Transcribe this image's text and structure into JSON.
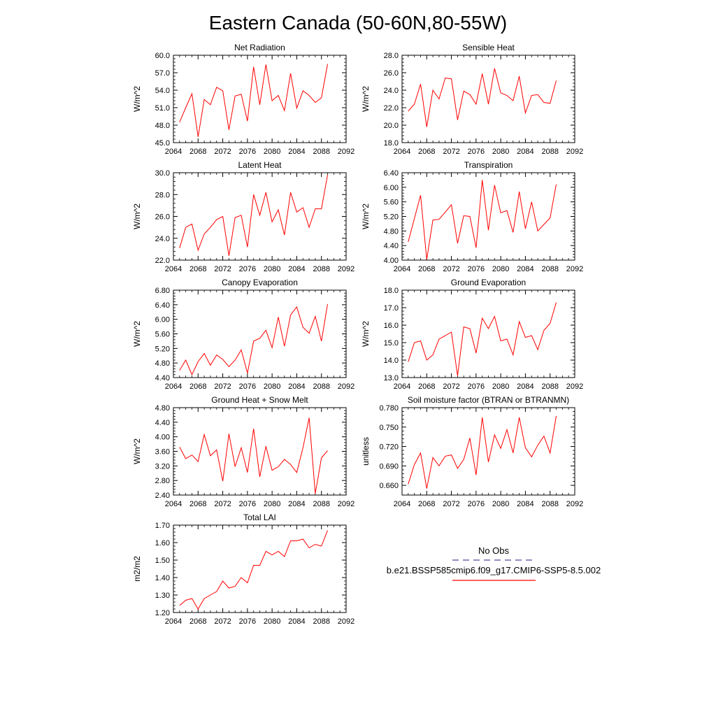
{
  "title": "Eastern Canada (50-60N,80-55W)",
  "legend": {
    "items": [
      {
        "label": "No Obs",
        "color": "#4a4aa0",
        "style": "dashed"
      },
      {
        "label": "b.e21.BSSP585cmip6.f09_g17.CMIP6-SSP5-8.5.002",
        "color": "#ff0000",
        "style": "solid"
      }
    ]
  },
  "chart_data": [
    {
      "type": "line",
      "title": "Net Radiation",
      "ylabel": "W/m^2",
      "xlim": [
        2064,
        2092
      ],
      "ylim": [
        45.0,
        60.0
      ],
      "xticks": [
        "2064",
        "2068",
        "2072",
        "2076",
        "2080",
        "2084",
        "2088",
        "2092"
      ],
      "yticks": [
        "45.0",
        "48.0",
        "51.0",
        "54.0",
        "57.0",
        "60.0"
      ],
      "series": [
        {
          "color": "#ff0000",
          "x": [
            2065,
            2066,
            2067,
            2068,
            2069,
            2070,
            2071,
            2072,
            2073,
            2074,
            2075,
            2076,
            2077,
            2078,
            2079,
            2080,
            2081,
            2082,
            2083,
            2084,
            2085,
            2086,
            2087,
            2088,
            2089
          ],
          "y": [
            48.5,
            51.0,
            53.4,
            46.0,
            52.4,
            51.5,
            54.5,
            53.9,
            47.2,
            53.0,
            53.3,
            48.7,
            58.0,
            51.5,
            58.4,
            52.2,
            53.1,
            50.5,
            56.9,
            50.9,
            53.9,
            53.1,
            51.9,
            52.7,
            58.5
          ]
        }
      ]
    },
    {
      "type": "line",
      "title": "Sensible Heat",
      "ylabel": "W/m^2",
      "xlim": [
        2064,
        2092
      ],
      "ylim": [
        18.0,
        28.0
      ],
      "xticks": [
        "2064",
        "2068",
        "2072",
        "2076",
        "2080",
        "2084",
        "2088",
        "2092"
      ],
      "yticks": [
        "18.0",
        "20.0",
        "22.0",
        "24.0",
        "26.0",
        "28.0"
      ],
      "series": [
        {
          "color": "#ff0000",
          "x": [
            2065,
            2066,
            2067,
            2068,
            2069,
            2070,
            2071,
            2072,
            2073,
            2074,
            2075,
            2076,
            2077,
            2078,
            2079,
            2080,
            2081,
            2082,
            2083,
            2084,
            2085,
            2086,
            2087,
            2088,
            2089
          ],
          "y": [
            21.6,
            22.4,
            24.7,
            19.8,
            24.0,
            23.0,
            25.4,
            25.3,
            20.6,
            23.9,
            23.5,
            22.4,
            25.9,
            22.4,
            26.5,
            23.7,
            23.4,
            22.8,
            25.6,
            21.4,
            23.4,
            23.5,
            22.6,
            22.5,
            25.1
          ]
        }
      ]
    },
    {
      "type": "line",
      "title": "Latent Heat",
      "ylabel": "W/m^2",
      "xlim": [
        2064,
        2092
      ],
      "ylim": [
        22.0,
        30.0
      ],
      "xticks": [
        "2064",
        "2068",
        "2072",
        "2076",
        "2080",
        "2084",
        "2088",
        "2092"
      ],
      "yticks": [
        "22.0",
        "24.0",
        "26.0",
        "28.0",
        "30.0"
      ],
      "series": [
        {
          "color": "#ff0000",
          "x": [
            2065,
            2066,
            2067,
            2068,
            2069,
            2070,
            2071,
            2072,
            2073,
            2074,
            2075,
            2076,
            2077,
            2078,
            2079,
            2080,
            2081,
            2082,
            2083,
            2084,
            2085,
            2086,
            2087,
            2088,
            2089
          ],
          "y": [
            23.1,
            25.0,
            25.3,
            22.9,
            24.4,
            25.0,
            25.7,
            26.0,
            22.4,
            25.9,
            26.1,
            23.2,
            28.0,
            26.1,
            28.2,
            25.5,
            26.6,
            24.3,
            28.2,
            26.4,
            26.8,
            25.0,
            26.7,
            26.7,
            29.8
          ]
        }
      ]
    },
    {
      "type": "line",
      "title": "Transpiration",
      "ylabel": "W/m^2",
      "xlim": [
        2064,
        2092
      ],
      "ylim": [
        4.0,
        6.4
      ],
      "xticks": [
        "2064",
        "2068",
        "2072",
        "2076",
        "2080",
        "2084",
        "2088",
        "2092"
      ],
      "yticks": [
        "4.00",
        "4.40",
        "4.80",
        "5.20",
        "5.60",
        "6.00",
        "6.40"
      ],
      "series": [
        {
          "color": "#ff0000",
          "x": [
            2065,
            2066,
            2067,
            2068,
            2069,
            2070,
            2071,
            2072,
            2073,
            2074,
            2075,
            2076,
            2077,
            2078,
            2079,
            2080,
            2081,
            2082,
            2083,
            2084,
            2085,
            2086,
            2087,
            2088,
            2089
          ],
          "y": [
            4.5,
            5.14,
            5.78,
            4.02,
            5.1,
            5.12,
            5.32,
            5.52,
            4.46,
            5.22,
            5.2,
            4.34,
            6.2,
            4.82,
            6.06,
            5.3,
            5.36,
            4.76,
            5.88,
            4.86,
            5.6,
            4.8,
            4.98,
            5.16,
            6.08
          ]
        }
      ]
    },
    {
      "type": "line",
      "title": "Canopy Evaporation",
      "ylabel": "W/m^2",
      "xlim": [
        2064,
        2092
      ],
      "ylim": [
        4.4,
        6.8
      ],
      "xticks": [
        "2064",
        "2068",
        "2072",
        "2076",
        "2080",
        "2084",
        "2088",
        "2092"
      ],
      "yticks": [
        "4.40",
        "4.80",
        "5.20",
        "5.60",
        "6.00",
        "6.40",
        "6.80"
      ],
      "series": [
        {
          "color": "#ff0000",
          "x": [
            2065,
            2066,
            2067,
            2068,
            2069,
            2070,
            2071,
            2072,
            2073,
            2074,
            2075,
            2076,
            2077,
            2078,
            2079,
            2080,
            2081,
            2082,
            2083,
            2084,
            2085,
            2086,
            2087,
            2088,
            2089
          ],
          "y": [
            4.6,
            4.88,
            4.48,
            4.84,
            5.06,
            4.74,
            5.02,
            4.9,
            4.7,
            4.88,
            5.16,
            4.52,
            5.4,
            5.48,
            5.7,
            5.22,
            6.06,
            5.26,
            6.12,
            6.34,
            5.78,
            5.62,
            6.08,
            5.4,
            6.42
          ]
        }
      ]
    },
    {
      "type": "line",
      "title": "Ground Evaporation",
      "ylabel": "W/m^2",
      "xlim": [
        2064,
        2092
      ],
      "ylim": [
        13.0,
        18.0
      ],
      "xticks": [
        "2064",
        "2068",
        "2072",
        "2076",
        "2080",
        "2084",
        "2088",
        "2092"
      ],
      "yticks": [
        "13.0",
        "14.0",
        "15.0",
        "16.0",
        "17.0",
        "18.0"
      ],
      "series": [
        {
          "color": "#ff0000",
          "x": [
            2065,
            2066,
            2067,
            2068,
            2069,
            2070,
            2071,
            2072,
            2073,
            2074,
            2075,
            2076,
            2077,
            2078,
            2079,
            2080,
            2081,
            2082,
            2083,
            2084,
            2085,
            2086,
            2087,
            2088,
            2089
          ],
          "y": [
            13.9,
            15.0,
            15.1,
            14.0,
            14.3,
            15.2,
            15.4,
            15.6,
            13.1,
            15.9,
            15.8,
            14.4,
            16.4,
            15.8,
            16.5,
            15.1,
            15.2,
            14.3,
            16.2,
            15.3,
            15.4,
            14.6,
            15.7,
            16.1,
            17.3
          ]
        }
      ]
    },
    {
      "type": "line",
      "title": "Ground Heat + Snow Melt",
      "ylabel": "W/m^2",
      "xlim": [
        2064,
        2092
      ],
      "ylim": [
        2.4,
        4.8
      ],
      "xticks": [
        "2064",
        "2068",
        "2072",
        "2076",
        "2080",
        "2084",
        "2088",
        "2092"
      ],
      "yticks": [
        "2.40",
        "2.80",
        "3.20",
        "3.60",
        "4.00",
        "4.40",
        "4.80"
      ],
      "series": [
        {
          "color": "#ff0000",
          "x": [
            2065,
            2066,
            2067,
            2068,
            2069,
            2070,
            2071,
            2072,
            2073,
            2074,
            2075,
            2076,
            2077,
            2078,
            2079,
            2080,
            2081,
            2082,
            2083,
            2084,
            2085,
            2086,
            2087,
            2088,
            2089
          ],
          "y": [
            3.72,
            3.4,
            3.5,
            3.32,
            4.06,
            3.48,
            3.64,
            2.78,
            4.08,
            3.18,
            3.7,
            3.02,
            4.22,
            2.9,
            3.74,
            3.08,
            3.18,
            3.38,
            3.24,
            3.02,
            3.7,
            4.52,
            2.44,
            3.42,
            3.62
          ]
        }
      ]
    },
    {
      "type": "line",
      "title": "Soil moisture factor (BTRAN or BTRANMN)",
      "ylabel": "unitless",
      "xlim": [
        2064,
        2092
      ],
      "ylim": [
        0.645,
        0.78
      ],
      "xticks": [
        "2064",
        "2068",
        "2072",
        "2076",
        "2080",
        "2084",
        "2088",
        "2092"
      ],
      "yticks": [
        "0.660",
        "0.690",
        "0.720",
        "0.750",
        "0.780"
      ],
      "yticks_values": [
        0.66,
        0.69,
        0.72,
        0.75,
        0.78
      ],
      "series": [
        {
          "color": "#ff0000",
          "x": [
            2065,
            2066,
            2067,
            2068,
            2069,
            2070,
            2071,
            2072,
            2073,
            2074,
            2075,
            2076,
            2077,
            2078,
            2079,
            2080,
            2081,
            2082,
            2083,
            2084,
            2085,
            2086,
            2087,
            2088,
            2089
          ],
          "y": [
            0.662,
            0.692,
            0.71,
            0.655,
            0.703,
            0.69,
            0.705,
            0.707,
            0.686,
            0.7,
            0.733,
            0.676,
            0.765,
            0.696,
            0.738,
            0.717,
            0.746,
            0.71,
            0.765,
            0.718,
            0.704,
            0.722,
            0.736,
            0.71,
            0.767
          ]
        }
      ]
    },
    {
      "type": "line",
      "title": "Total LAI",
      "ylabel": "m2/m2",
      "xlim": [
        2064,
        2092
      ],
      "ylim": [
        1.2,
        1.7
      ],
      "xticks": [
        "2064",
        "2068",
        "2072",
        "2076",
        "2080",
        "2084",
        "2088",
        "2092"
      ],
      "yticks": [
        "1.20",
        "1.30",
        "1.40",
        "1.50",
        "1.60",
        "1.70"
      ],
      "series": [
        {
          "color": "#ff0000",
          "x": [
            2065,
            2066,
            2067,
            2068,
            2069,
            2070,
            2071,
            2072,
            2073,
            2074,
            2075,
            2076,
            2077,
            2078,
            2079,
            2080,
            2081,
            2082,
            2083,
            2084,
            2085,
            2086,
            2087,
            2088,
            2089
          ],
          "y": [
            1.24,
            1.27,
            1.28,
            1.22,
            1.28,
            1.3,
            1.32,
            1.38,
            1.34,
            1.35,
            1.4,
            1.37,
            1.47,
            1.47,
            1.55,
            1.53,
            1.55,
            1.52,
            1.61,
            1.61,
            1.62,
            1.57,
            1.59,
            1.58,
            1.67
          ]
        }
      ]
    }
  ]
}
